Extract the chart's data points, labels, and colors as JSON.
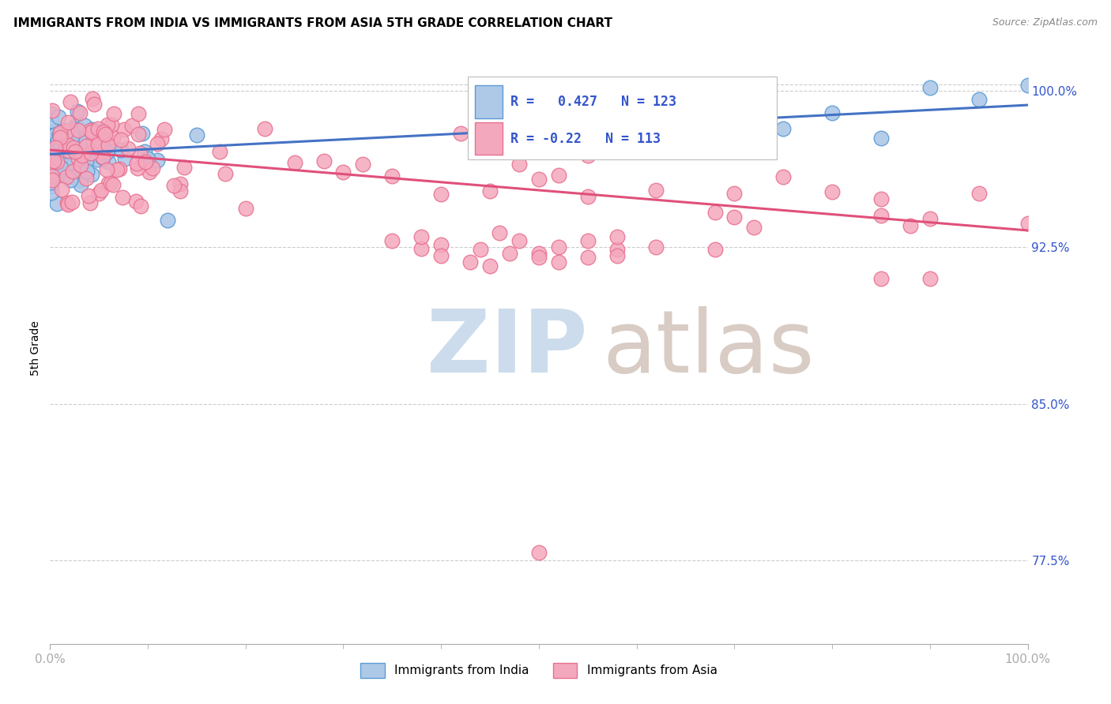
{
  "title": "IMMIGRANTS FROM INDIA VS IMMIGRANTS FROM ASIA 5TH GRADE CORRELATION CHART",
  "source": "Source: ZipAtlas.com",
  "ylabel": "5th Grade",
  "ytick_vals": [
    0.775,
    0.85,
    0.925,
    1.0
  ],
  "ytick_labels": [
    "77.5%",
    "85.0%",
    "92.5%",
    "100.0%"
  ],
  "xlim": [
    0.0,
    1.0
  ],
  "ylim": [
    0.735,
    1.018
  ],
  "r_india": 0.427,
  "n_india": 123,
  "r_asia": -0.22,
  "n_asia": 113,
  "india_color_edge": "#5b9bd5",
  "india_color_fill": "#aec8e8",
  "asia_color_edge": "#e87090",
  "asia_color_fill": "#f4a8be",
  "trend_india_color": "#4472c4",
  "trend_asia_color": "#e0507a",
  "watermark_zip_color": "#ccdcec",
  "watermark_atlas_color": "#d8ccc4",
  "background_color": "#ffffff",
  "axis_label_color": "#3355cc",
  "grid_color": "#cccccc",
  "trend_india_x0": 0.0,
  "trend_india_y0": 0.9695,
  "trend_india_x1": 1.0,
  "trend_india_y1": 0.993,
  "trend_asia_x0": 0.0,
  "trend_asia_y0": 0.9715,
  "trend_asia_x1": 1.0,
  "trend_asia_y1": 0.933
}
